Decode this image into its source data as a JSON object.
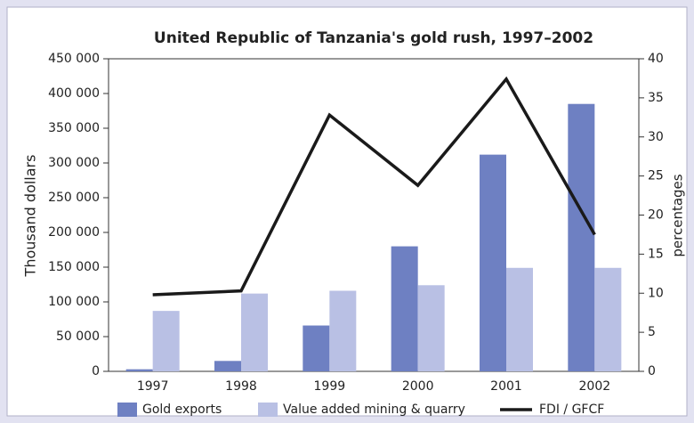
{
  "chart_data": {
    "type": "bar",
    "title": "United Republic of Tanzania's gold rush, 1997–2002",
    "ylabel": "Thousand dollars",
    "y2label": "percentages",
    "categories": [
      "1997",
      "1998",
      "1999",
      "2000",
      "2001",
      "2002"
    ],
    "series": [
      {
        "name": "Gold exports",
        "type": "bar",
        "color": "#6e80c2",
        "values": [
          3000,
          15000,
          66000,
          180000,
          312000,
          385000
        ]
      },
      {
        "name": "Value added mining & quarry",
        "type": "bar",
        "color": "#b9c0e4",
        "values": [
          87000,
          112000,
          116000,
          124000,
          149000,
          149000
        ]
      },
      {
        "name": "FDI / GFCF",
        "type": "line",
        "axis": "y2",
        "color": "#1a1a1a",
        "values": [
          9.8,
          10.3,
          32.8,
          23.8,
          37.4,
          17.5
        ]
      }
    ],
    "ylim": [
      0,
      450000
    ],
    "yticks": [
      0,
      {
        "value": 50000,
        "label": "50 000"
      },
      {
        "value": 100000,
        "label": "100 000"
      },
      {
        "value": 150000,
        "label": "150 000"
      },
      {
        "value": 200000,
        "label": "200 000"
      },
      {
        "value": 250000,
        "label": "250 000"
      },
      {
        "value": 300000,
        "label": "300 000"
      },
      {
        "value": 350000,
        "label": "350 000"
      },
      {
        "value": 400000,
        "label": "400 000"
      },
      {
        "value": 450000,
        "label": "450 000"
      }
    ],
    "y2lim": [
      0,
      40
    ],
    "y2ticks": [
      0,
      5,
      10,
      15,
      20,
      25,
      30,
      35,
      40
    ]
  }
}
